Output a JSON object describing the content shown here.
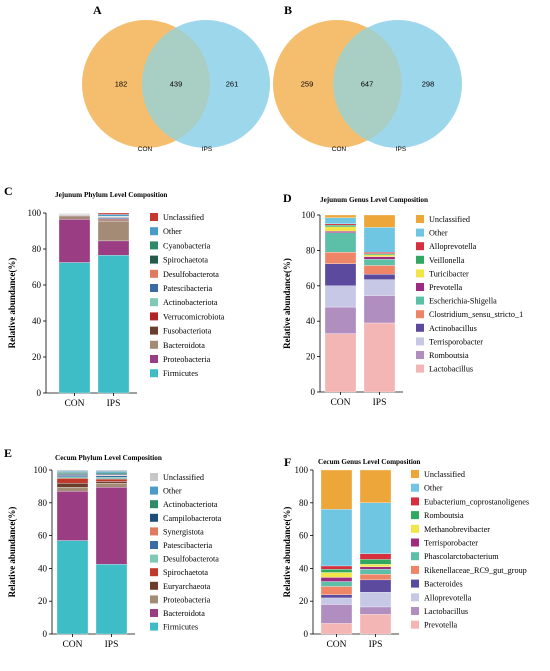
{
  "venns": [
    {
      "letter": "A",
      "left_only": "182",
      "both": "439",
      "right_only": "261",
      "left_label": "CON",
      "right_label": "IPS",
      "left_color": "#F4BE6E",
      "right_color": "#9DD7EC",
      "overlap_color": "#A9CFC4"
    },
    {
      "letter": "B",
      "left_only": "259",
      "both": "647",
      "right_only": "298",
      "left_label": "CON",
      "right_label": "IPS",
      "left_color": "#F4BE6E",
      "right_color": "#9DD7EC",
      "overlap_color": "#A9CFC4"
    }
  ],
  "chart_data": [
    {
      "letter": "C",
      "type": "bar",
      "stacked": true,
      "title": "Jejunum Phylum  Level Composition",
      "ylabel": "Relative abundance(%)",
      "xlabel": "",
      "ylim": [
        0,
        100
      ],
      "yticks": [
        0,
        20,
        40,
        60,
        80,
        100
      ],
      "categories": [
        "CON",
        "IPS"
      ],
      "series": [
        {
          "name": "Firmicutes",
          "color": "#3FBDC6",
          "values": [
            72.5,
            76.5
          ]
        },
        {
          "name": "Proteobacteria",
          "color": "#9A3D83",
          "values": [
            24.0,
            8.0
          ]
        },
        {
          "name": "Bacteroidota",
          "color": "#A48B76",
          "values": [
            1.5,
            11.0
          ]
        },
        {
          "name": "Fusobacteriota",
          "color": "#6B3D2B",
          "values": [
            0.4,
            0.5
          ]
        },
        {
          "name": "Verrucomicrobiota",
          "color": "#B22222",
          "values": [
            0.3,
            0.5
          ]
        },
        {
          "name": "Actinobacteriota",
          "color": "#7FC9B6",
          "values": [
            0.3,
            0.3
          ]
        },
        {
          "name": "Patescibacteria",
          "color": "#3A6BA5",
          "values": [
            0.2,
            0.7
          ]
        },
        {
          "name": "Desulfobacterota",
          "color": "#E07B62",
          "values": [
            0.2,
            0.3
          ]
        },
        {
          "name": "Spirochaetota",
          "color": "#235A4A",
          "values": [
            0.1,
            0.2
          ]
        },
        {
          "name": "Cyanobacteria",
          "color": "#2E8B67",
          "values": [
            0.1,
            0.2
          ]
        },
        {
          "name": "Other",
          "color": "#4A9BC7",
          "values": [
            0.2,
            1.0
          ]
        },
        {
          "name": "Unclassified",
          "color": "#C8382F",
          "values": [
            0.2,
            0.8
          ]
        }
      ]
    },
    {
      "letter": "D",
      "type": "bar",
      "stacked": true,
      "title": "Jejunum Genus Level Composition",
      "ylabel": "Relative abundance(%)",
      "xlabel": "",
      "ylim": [
        0,
        100
      ],
      "yticks": [
        0,
        20,
        40,
        60,
        80,
        100
      ],
      "categories": [
        "CON",
        "IPS"
      ],
      "series": [
        {
          "name": "Lactobacillus",
          "color": "#F4B6B4",
          "values": [
            33.0,
            39.0
          ]
        },
        {
          "name": "Romboutsia",
          "color": "#B08EC0",
          "values": [
            15.0,
            15.5
          ]
        },
        {
          "name": "Terrisporobacter",
          "color": "#C6C8E6",
          "values": [
            12.0,
            9.0
          ]
        },
        {
          "name": "Actinobacillus",
          "color": "#5B4A9E",
          "values": [
            12.5,
            3.0
          ]
        },
        {
          "name": "Clostridium_sensu_stricto_1",
          "color": "#EE8566",
          "values": [
            6.5,
            5.0
          ]
        },
        {
          "name": "Escherichia-Shigella",
          "color": "#5CBFA8",
          "values": [
            11.0,
            3.5
          ]
        },
        {
          "name": "Prevotella",
          "color": "#9E2B83",
          "values": [
            0.8,
            1.5
          ]
        },
        {
          "name": "Turicibacter",
          "color": "#F1E547",
          "values": [
            2.5,
            1.0
          ]
        },
        {
          "name": "Veillonella",
          "color": "#30A85F",
          "values": [
            1.0,
            0.7
          ]
        },
        {
          "name": "Alloprevotella",
          "color": "#D62F3E",
          "values": [
            0.7,
            0.8
          ]
        },
        {
          "name": "Other",
          "color": "#6EC6E3",
          "values": [
            3.5,
            14.0
          ]
        },
        {
          "name": "Unclassified",
          "color": "#ECA63A",
          "values": [
            1.5,
            7.0
          ]
        }
      ]
    },
    {
      "letter": "E",
      "type": "bar",
      "stacked": true,
      "title": "Cecum Phylum Level Composition",
      "ylabel": "Relative abundance(%)",
      "xlabel": "",
      "ylim": [
        0,
        100
      ],
      "yticks": [
        0,
        20,
        40,
        60,
        80,
        100
      ],
      "categories": [
        "CON",
        "IPS"
      ],
      "series": [
        {
          "name": "Firmicutes",
          "color": "#3FBDC6",
          "values": [
            57.0,
            42.5
          ]
        },
        {
          "name": "Bacteroidota",
          "color": "#9A3D83",
          "values": [
            30.0,
            47.0
          ]
        },
        {
          "name": "Proteobacteria",
          "color": "#A48B76",
          "values": [
            2.5,
            2.5
          ]
        },
        {
          "name": "Euryarchaeota",
          "color": "#6B3D2B",
          "values": [
            2.5,
            1.0
          ]
        },
        {
          "name": "Spirochaetota",
          "color": "#C0392B",
          "values": [
            3.0,
            1.5
          ]
        },
        {
          "name": "Desulfobacterota",
          "color": "#7FC9B6",
          "values": [
            0.8,
            1.0
          ]
        },
        {
          "name": "Patescibacteria",
          "color": "#3A6BA5",
          "values": [
            1.0,
            1.0
          ]
        },
        {
          "name": "Synergistota",
          "color": "#E07B62",
          "values": [
            0.4,
            0.4
          ]
        },
        {
          "name": "Campilobacterota",
          "color": "#1F4E79",
          "values": [
            0.6,
            0.6
          ]
        },
        {
          "name": "Actinobacteriota",
          "color": "#2E8B67",
          "values": [
            0.7,
            0.7
          ]
        },
        {
          "name": "Other",
          "color": "#4A9BC7",
          "values": [
            0.8,
            1.0
          ]
        },
        {
          "name": "Unclassified",
          "color": "#C7C7C7",
          "values": [
            0.7,
            0.8
          ]
        }
      ]
    },
    {
      "letter": "F",
      "type": "bar",
      "stacked": true,
      "title": "Cecum Genus Level Composition",
      "ylabel": "Relative abundance(%)",
      "xlabel": "",
      "ylim": [
        0,
        100
      ],
      "yticks": [
        0,
        20,
        40,
        60,
        80,
        100
      ],
      "categories": [
        "CON",
        "IPS"
      ],
      "series": [
        {
          "name": "Prevotella",
          "color": "#F4B6B4",
          "values": [
            6.5,
            12.0
          ]
        },
        {
          "name": "Lactobacillus",
          "color": "#B08EC0",
          "values": [
            11.5,
            4.5
          ]
        },
        {
          "name": "Alloprevotella",
          "color": "#C6C8E6",
          "values": [
            4.0,
            9.0
          ]
        },
        {
          "name": "Bacteroides",
          "color": "#5B4A9E",
          "values": [
            2.0,
            7.5
          ]
        },
        {
          "name": "Rikenellaceae_RC9_gut_group",
          "color": "#EE8566",
          "values": [
            5.0,
            3.5
          ]
        },
        {
          "name": "Phascolarctobacterium",
          "color": "#5CBFA8",
          "values": [
            3.0,
            3.0
          ]
        },
        {
          "name": "Terrisporobacter",
          "color": "#9E2B83",
          "values": [
            2.5,
            1.5
          ]
        },
        {
          "name": "Methanobrevibacter",
          "color": "#F1E547",
          "values": [
            3.0,
            1.5
          ]
        },
        {
          "name": "Romboutsia",
          "color": "#30A85F",
          "values": [
            2.0,
            3.0
          ]
        },
        {
          "name": "Eubacterium_coprostanoligenes",
          "color": "#D62F3E",
          "values": [
            2.0,
            3.5
          ]
        },
        {
          "name": "Other",
          "color": "#6EC6E3",
          "values": [
            34.5,
            31.0
          ]
        },
        {
          "name": "Unclassified",
          "color": "#ECA63A",
          "values": [
            24.0,
            20.0
          ]
        }
      ]
    }
  ]
}
